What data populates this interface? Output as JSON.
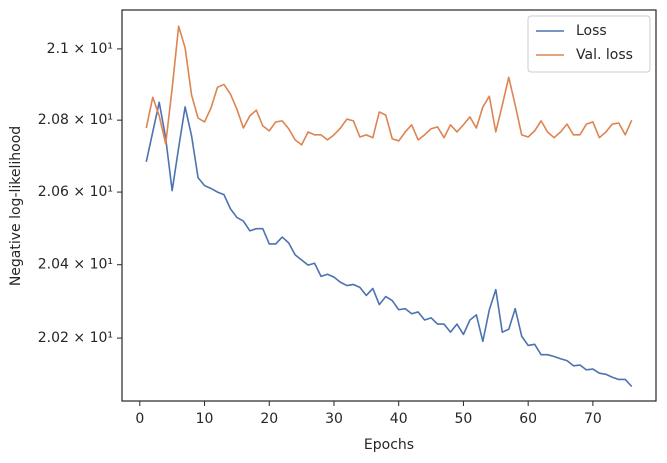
{
  "chart_data": {
    "type": "line",
    "x_label": "Epochs",
    "y_label": "Negative log-likelihood",
    "x": [
      1,
      2,
      3,
      4,
      5,
      6,
      7,
      8,
      9,
      10,
      11,
      12,
      13,
      14,
      15,
      16,
      17,
      18,
      19,
      20,
      21,
      22,
      23,
      24,
      25,
      26,
      27,
      28,
      29,
      30,
      31,
      32,
      33,
      34,
      35,
      36,
      37,
      38,
      39,
      40,
      41,
      42,
      43,
      44,
      45,
      46,
      47,
      48,
      49,
      50,
      51,
      52,
      53,
      54,
      55,
      56,
      57,
      58,
      59,
      60,
      61,
      62,
      63,
      64,
      65,
      66,
      67,
      68,
      69,
      70,
      71,
      72,
      73,
      74,
      75,
      76
    ],
    "series": [
      {
        "name": "Loss",
        "color": "#4c72b0",
        "values": [
          20.684,
          20.767,
          20.85,
          20.75,
          20.604,
          20.723,
          20.837,
          20.756,
          20.64,
          20.618,
          20.61,
          20.6,
          20.593,
          20.554,
          20.53,
          20.52,
          20.493,
          20.499,
          20.499,
          20.457,
          20.457,
          20.476,
          20.46,
          20.427,
          20.413,
          20.399,
          20.404,
          20.368,
          20.374,
          20.366,
          20.352,
          20.343,
          20.346,
          20.338,
          20.316,
          20.335,
          20.291,
          20.313,
          20.302,
          20.277,
          20.28,
          20.266,
          20.271,
          20.249,
          20.255,
          20.238,
          20.238,
          20.216,
          20.238,
          20.21,
          20.249,
          20.263,
          20.191,
          20.277,
          20.332,
          20.216,
          20.224,
          20.28,
          20.205,
          20.18,
          20.183,
          20.155,
          20.155,
          20.15,
          20.144,
          20.139,
          20.125,
          20.127,
          20.114,
          20.116,
          20.105,
          20.102,
          20.094,
          20.088,
          20.088,
          20.069
        ]
      },
      {
        "name": "Val. loss",
        "color": "#dd8452",
        "values": [
          20.778,
          20.864,
          20.812,
          20.734,
          20.889,
          21.064,
          21.003,
          20.87,
          20.806,
          20.795,
          20.834,
          20.892,
          20.9,
          20.873,
          20.831,
          20.778,
          20.812,
          20.828,
          20.784,
          20.77,
          20.795,
          20.798,
          20.776,
          20.745,
          20.731,
          20.767,
          20.759,
          20.759,
          20.745,
          20.759,
          20.778,
          20.803,
          20.798,
          20.753,
          20.759,
          20.751,
          20.823,
          20.814,
          20.748,
          20.742,
          20.767,
          20.787,
          20.745,
          20.759,
          20.776,
          20.781,
          20.751,
          20.787,
          20.767,
          20.787,
          20.809,
          20.778,
          20.837,
          20.867,
          20.767,
          20.842,
          20.92,
          20.842,
          20.759,
          20.753,
          20.77,
          20.798,
          20.767,
          20.751,
          20.767,
          20.789,
          20.759,
          20.759,
          20.789,
          20.795,
          20.751,
          20.767,
          20.789,
          20.792,
          20.759,
          20.8
        ]
      }
    ],
    "xlim": [
      -2.75,
      79.75
    ],
    "xticks": [
      0,
      10,
      20,
      30,
      40,
      50,
      60,
      70
    ],
    "ylim": [
      20.03,
      21.11
    ],
    "log_y": true,
    "yticks": [
      {
        "value": 20.2,
        "label": "2.02 × 10¹"
      },
      {
        "value": 20.4,
        "label": "2.04 × 10¹"
      },
      {
        "value": 20.6,
        "label": "2.06 × 10¹"
      },
      {
        "value": 20.8,
        "label": "2.08 × 10¹"
      },
      {
        "value": 21.0,
        "label": "2.1 × 10¹"
      }
    ],
    "grid": false,
    "legend": "upper right"
  }
}
